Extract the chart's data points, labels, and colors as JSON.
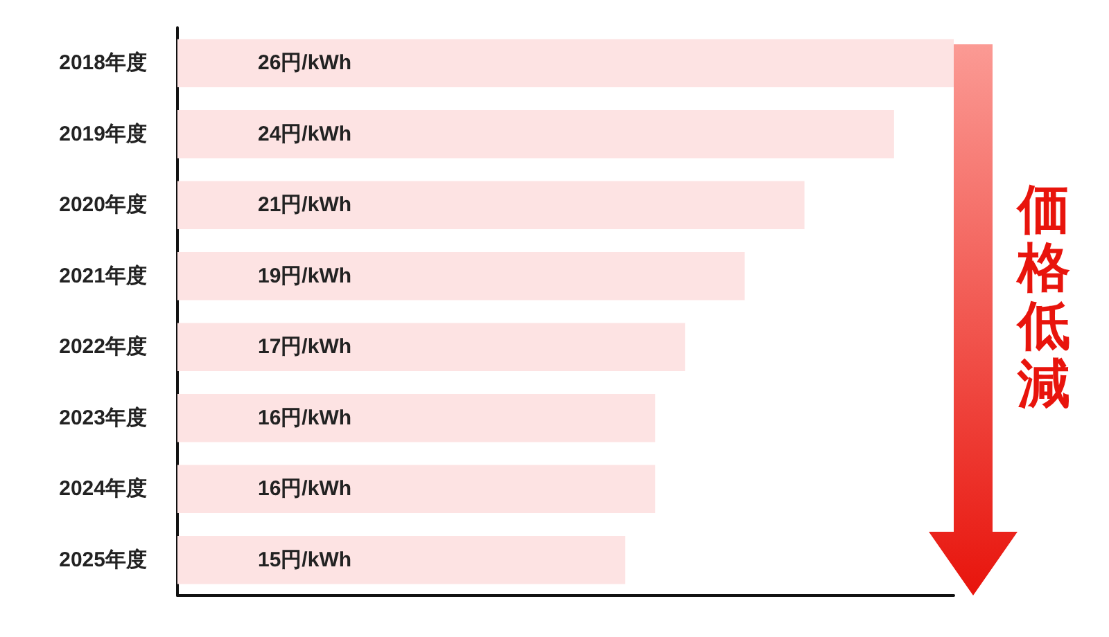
{
  "chart_data": {
    "type": "bar",
    "orientation": "horizontal",
    "categories": [
      "2018年度",
      "2019年度",
      "2020年度",
      "2021年度",
      "2022年度",
      "2023年度",
      "2024年度",
      "2025年度"
    ],
    "values": [
      26,
      24,
      21,
      19,
      17,
      16,
      16,
      15
    ],
    "value_labels": [
      "26円/kWh",
      "24円/kWh",
      "21円/kWh",
      "19円/kWh",
      "17円/kWh",
      "16円/kWh",
      "16円/kWh",
      "15円/kWh"
    ],
    "color": "#fde3e3",
    "annotations": [
      "価格低減"
    ],
    "tick_labels": "y",
    "grid": false
  }
}
